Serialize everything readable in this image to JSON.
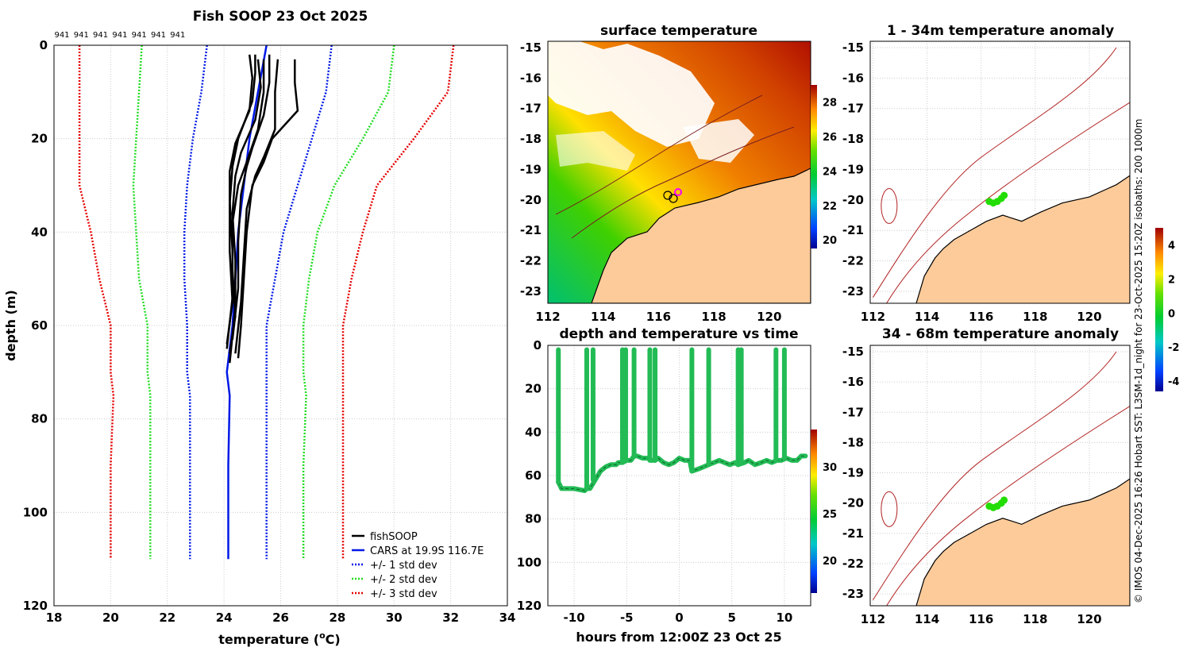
{
  "colors": {
    "black": "#000000",
    "blue": "#0019e6",
    "green": "#22dd22",
    "red": "#e60000",
    "land": "#fdcb9a",
    "coast": "#000000",
    "isobath": "#b22222"
  },
  "credit": "© IMOS 04-Dec-2025 16:26 Hobart SST: L3SM-1d_night for 23-Oct-2025 15:20Z isobaths: 200  1000m",
  "chart_data": [
    {
      "type": "line",
      "title": "Fish SOOP 23 Oct 2025",
      "xlabel_main": "temperature (",
      "xlabel_sup": "o",
      "xlabel_end": "C)",
      "ylabel": "depth (m)",
      "xlim": [
        18,
        34
      ],
      "ylim": [
        120,
        0
      ],
      "xticks": [
        "18",
        "20",
        "22",
        "24",
        "26",
        "28",
        "30",
        "32",
        "34"
      ],
      "yticks": [
        "0",
        "20",
        "40",
        "60",
        "80",
        "100",
        "120"
      ],
      "top_labels": [
        "941",
        "941",
        "941",
        "941",
        "941",
        "941",
        "941"
      ],
      "legend": [
        "fishSOOP",
        "CARS at 19.9S 116.7E",
        "+/- 1 std dev",
        "+/- 2 std dev",
        "+/- 3 std dev"
      ],
      "series": [
        {
          "name": "CARS",
          "depth": [
            0,
            10,
            20,
            30,
            40,
            50,
            60,
            70,
            75,
            90,
            110
          ],
          "temp": [
            25.5,
            25.2,
            24.9,
            24.7,
            24.5,
            24.4,
            24.3,
            24.1,
            24.2,
            24.15,
            24.15
          ]
        },
        {
          "name": "+1 std",
          "depth": [
            0,
            10,
            20,
            30,
            40,
            50,
            60,
            70,
            75,
            90,
            110
          ],
          "temp": [
            27.8,
            27.6,
            27.1,
            26.6,
            26.1,
            25.8,
            25.5,
            25.5,
            25.5,
            25.5,
            25.5
          ]
        },
        {
          "name": "-1 std",
          "depth": [
            0,
            10,
            20,
            30,
            40,
            50,
            60,
            70,
            75,
            90,
            110
          ],
          "temp": [
            23.4,
            23.2,
            22.9,
            22.7,
            22.6,
            22.6,
            22.7,
            22.7,
            22.8,
            22.8,
            22.8
          ]
        },
        {
          "name": "+2 std",
          "depth": [
            0,
            10,
            20,
            30,
            40,
            50,
            60,
            70,
            75,
            90,
            110
          ],
          "temp": [
            30.0,
            29.8,
            28.9,
            27.9,
            27.3,
            27.0,
            26.8,
            26.8,
            26.9,
            26.8,
            26.8
          ]
        },
        {
          "name": "-2 std",
          "depth": [
            0,
            10,
            20,
            30,
            40,
            50,
            60,
            70,
            75,
            90,
            110
          ],
          "temp": [
            21.1,
            21.0,
            20.9,
            20.8,
            20.9,
            21.0,
            21.3,
            21.3,
            21.4,
            21.4,
            21.4
          ]
        },
        {
          "name": "+3 std",
          "depth": [
            0,
            10,
            20,
            30,
            40,
            50,
            60,
            70,
            75,
            90,
            110
          ],
          "temp": [
            32.1,
            31.9,
            30.7,
            29.4,
            28.9,
            28.5,
            28.2,
            28.2,
            28.2,
            28.2,
            28.2
          ]
        },
        {
          "name": "-3 std",
          "depth": [
            0,
            10,
            20,
            30,
            40,
            50,
            60,
            70,
            75,
            90,
            110
          ],
          "temp": [
            18.9,
            18.9,
            18.9,
            18.9,
            19.3,
            19.6,
            20.0,
            20.0,
            20.1,
            20.0,
            20.0
          ]
        }
      ],
      "fishsoop_profiles": [
        {
          "depth": [
            3,
            8,
            14,
            20,
            25,
            30,
            40,
            50,
            60,
            67
          ],
          "temp": [
            26.5,
            26.5,
            26.6,
            25.7,
            25.4,
            25.0,
            24.8,
            24.7,
            24.6,
            24.5
          ]
        },
        {
          "depth": [
            3,
            10,
            18,
            24,
            28,
            35,
            45,
            55,
            66
          ],
          "temp": [
            25.9,
            25.8,
            25.8,
            25.4,
            25.1,
            24.8,
            24.7,
            24.6,
            24.4
          ]
        },
        {
          "depth": [
            2,
            8,
            15,
            22,
            26,
            32,
            42,
            52,
            63
          ],
          "temp": [
            25.6,
            25.6,
            25.4,
            25.0,
            24.8,
            24.6,
            24.5,
            24.5,
            24.3
          ]
        },
        {
          "depth": [
            3,
            9,
            16,
            23,
            28,
            36,
            46,
            56,
            68
          ],
          "temp": [
            25.2,
            25.3,
            25.1,
            24.6,
            24.4,
            24.3,
            24.4,
            24.4,
            24.2
          ]
        },
        {
          "depth": [
            2,
            7,
            14,
            21,
            27,
            33,
            44,
            54,
            65
          ],
          "temp": [
            24.9,
            25.0,
            24.9,
            24.4,
            24.2,
            24.2,
            24.3,
            24.3,
            24.1
          ]
        },
        {
          "depth": [
            3,
            10,
            18,
            25,
            30,
            38,
            48,
            58,
            66
          ],
          "temp": [
            25.4,
            25.4,
            25.2,
            24.8,
            24.5,
            24.3,
            24.3,
            24.4,
            24.2
          ]
        },
        {
          "depth": [
            2,
            6,
            12,
            20,
            26,
            34,
            44,
            55,
            64
          ],
          "temp": [
            25.1,
            25.1,
            25.0,
            24.5,
            24.3,
            24.2,
            24.2,
            24.3,
            24.1
          ]
        }
      ]
    },
    {
      "type": "heatmap",
      "title": "surface temperature",
      "xticks": [
        "112",
        "114",
        "116",
        "118",
        "120"
      ],
      "yticks": [
        "-15",
        "-16",
        "-17",
        "-18",
        "-19",
        "-20",
        "-21",
        "-22",
        "-23"
      ],
      "colorbar_ticks": [
        "28",
        "26",
        "24",
        "22",
        "20"
      ],
      "colorbar_range": [
        19.5,
        29
      ]
    },
    {
      "type": "scatter",
      "title": "depth and temperature vs time",
      "xlabel": "hours from 12:00Z 23 Oct 25",
      "xlim": [
        -12.5,
        12.5
      ],
      "ylim": [
        120,
        0
      ],
      "xticks": [
        "-10",
        "-5",
        "0",
        "5",
        "10"
      ],
      "yticks": [
        "0",
        "20",
        "40",
        "60",
        "80",
        "100",
        "120"
      ],
      "colorbar_ticks": [
        "30",
        "25",
        "20"
      ],
      "colorbar_range": [
        16.5,
        34
      ],
      "track_hours": [
        -11.5,
        -11.3,
        -11.2,
        -10,
        -9,
        -8.8,
        -8.5,
        -8,
        -7.5,
        -7,
        -6.5,
        -6,
        -5.8,
        -5.4,
        -5,
        -4.6,
        -4.3,
        -4,
        -3.5,
        -3,
        -2.7,
        -2.3,
        -2,
        -1.5,
        -1,
        -0.5,
        0,
        0.5,
        1,
        1.2,
        1.8,
        2.3,
        2.8,
        3.3,
        3.8,
        4.3,
        4.8,
        5.3,
        5.6,
        6.2,
        6.6,
        7.2,
        7.8,
        8.3,
        8.8,
        9.3,
        9.7,
        10.2,
        10.7,
        11.2,
        11.6,
        12
      ],
      "track_depth": [
        63,
        65,
        66,
        66,
        67,
        66,
        66,
        62,
        58,
        56,
        55,
        55,
        54,
        54,
        53,
        53,
        51,
        51,
        52,
        52,
        53,
        53,
        52,
        54,
        55,
        54,
        52,
        53,
        53,
        58,
        57,
        56,
        55,
        54,
        53,
        54,
        55,
        54,
        55,
        54,
        53,
        55,
        54,
        53,
        54,
        53,
        53,
        52,
        53,
        53,
        51,
        51
      ],
      "casts": [
        -11.5,
        -8.8,
        -8.2,
        -5.4,
        -5.1,
        -4.3,
        -2.8,
        -2.3,
        1.2,
        2.8,
        5.6,
        5.9,
        9.2,
        10.0
      ]
    },
    {
      "type": "scatter",
      "title": "1 - 34m temperature anomaly",
      "xticks": [
        "112",
        "114",
        "116",
        "118",
        "120"
      ],
      "yticks": [
        "-15",
        "-16",
        "-17",
        "-18",
        "-19",
        "-20",
        "-21",
        "-22",
        "-23"
      ],
      "points_lon": [
        116.3,
        116.45,
        116.6,
        116.75,
        116.85
      ],
      "points_lat": [
        -20.05,
        -20.1,
        -20.05,
        -19.95,
        -19.85
      ],
      "anomaly": [
        0.1,
        0.2,
        0.3,
        0.2,
        0.4
      ]
    },
    {
      "type": "scatter",
      "title": "34 - 68m temperature anomaly",
      "xticks": [
        "112",
        "114",
        "116",
        "118",
        "120"
      ],
      "yticks": [
        "-15",
        "-16",
        "-17",
        "-18",
        "-19",
        "-20",
        "-21",
        "-22",
        "-23"
      ],
      "points_lon": [
        116.3,
        116.45,
        116.6,
        116.75,
        116.85
      ],
      "points_lat": [
        -20.1,
        -20.15,
        -20.1,
        -20.0,
        -19.9
      ],
      "anomaly": [
        0.2,
        0.1,
        0.3,
        0.3,
        0.2
      ],
      "colorbar_ticks": [
        "4",
        "2",
        "0",
        "-2",
        "-4"
      ],
      "colorbar_range": [
        -4.6,
        5
      ]
    }
  ]
}
